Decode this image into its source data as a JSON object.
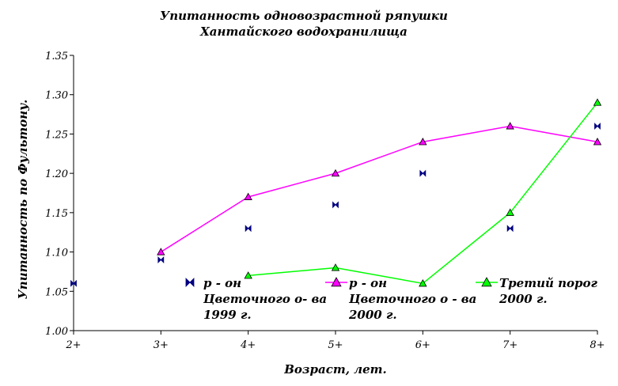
{
  "chart_data": {
    "type": "line",
    "title": [
      "Упитанность одновозрастной ряпушки",
      "Хантайского водохранилища"
    ],
    "xlabel": "Возраст, лет.",
    "ylabel": "Упитанность по Фультону.",
    "categories": [
      "2+",
      "3+",
      "4+",
      "5+",
      "6+",
      "7+",
      "8+"
    ],
    "ylim": [
      1.0,
      1.35
    ],
    "yticks": [
      "1.00",
      "1.05",
      "1.10",
      "1.15",
      "1.20",
      "1.25",
      "1.30",
      "1.35"
    ],
    "grid": false,
    "series": [
      {
        "name": [
          "р - он",
          "Цветочного о- ва",
          "1999 г."
        ],
        "values": [
          1.06,
          1.09,
          1.13,
          1.16,
          1.2,
          1.13,
          1.26
        ],
        "color": "#000080",
        "marker": "bowtie",
        "line": false
      },
      {
        "name": [
          "р - он",
          "Цветочного о - ва",
          "2000 г."
        ],
        "values": [
          null,
          1.1,
          1.17,
          1.2,
          1.24,
          1.26,
          1.24
        ],
        "color": "#ff00ff",
        "marker": "triangle",
        "line": true
      },
      {
        "name": [
          "Третий порог",
          "2000 г."
        ],
        "values": [
          null,
          null,
          1.07,
          1.08,
          1.06,
          1.15,
          1.29
        ],
        "color": "#00ff00",
        "marker": "triangle",
        "line": true
      }
    ]
  }
}
